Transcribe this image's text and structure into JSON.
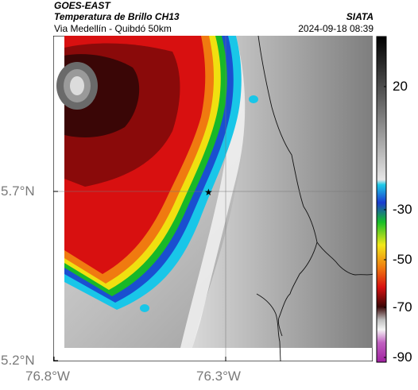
{
  "header": {
    "satellite": "GOES-EAST",
    "product": "Temperatura de Brillo CH13",
    "route": "Via Medellín - Quibdó 50km",
    "org": "SIATA",
    "datetime": "2024-09-18 08:39"
  },
  "axes": {
    "lat_labels": [
      "5.7°N",
      "5.2°N"
    ],
    "lon_labels": [
      "76.8°W",
      "76.3°W"
    ]
  },
  "colorbar": {
    "labels": [
      "20",
      "-30",
      "-50",
      "-70",
      "-90"
    ]
  },
  "marker": {
    "symbol": "★"
  },
  "colors": {
    "cloud_deep_red": "#d81010",
    "cloud_black": "#3a0606",
    "cyan_edge": "#19c6e8"
  }
}
